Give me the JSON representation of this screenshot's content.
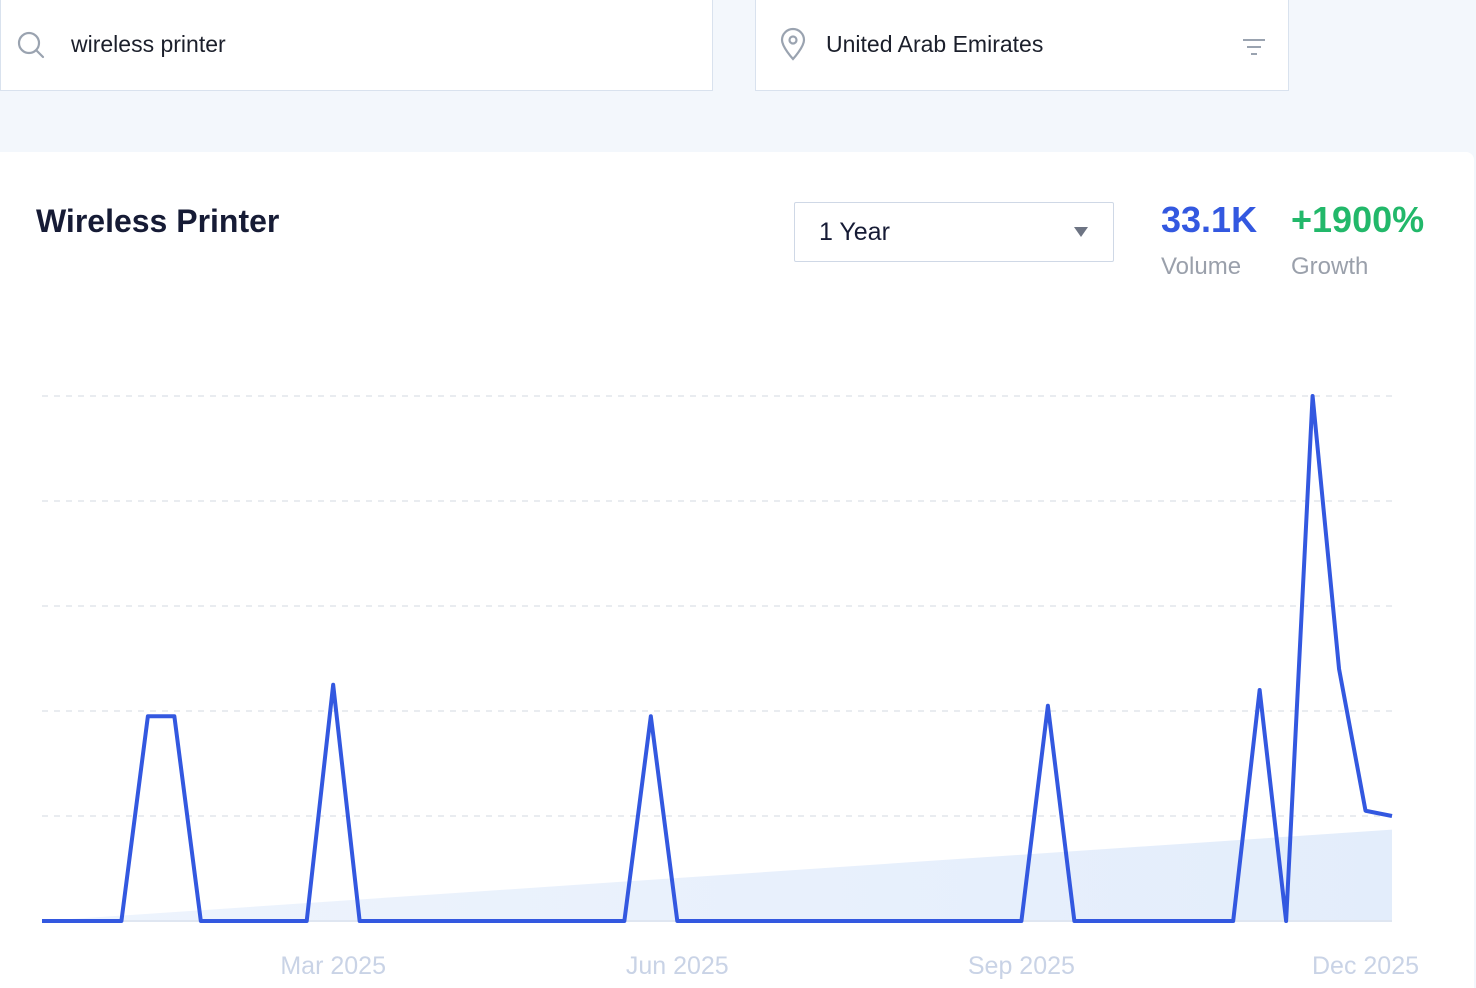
{
  "search": {
    "query": "wireless printer",
    "location": "United Arab Emirates"
  },
  "panel": {
    "title": "Wireless Printer",
    "period": "1 Year",
    "volume": "33.1K",
    "volume_label": "Volume",
    "growth": "+1900%",
    "growth_label": "Growth"
  },
  "chart_data": {
    "type": "line",
    "categories": [
      null,
      null,
      null,
      null,
      null,
      null,
      null,
      null,
      null,
      null,
      null,
      "Mar 2025",
      null,
      null,
      null,
      null,
      null,
      null,
      null,
      null,
      null,
      null,
      null,
      null,
      "Jun 2025",
      null,
      null,
      null,
      null,
      null,
      null,
      null,
      null,
      null,
      null,
      null,
      null,
      "Sep 2025",
      null,
      null,
      null,
      null,
      null,
      null,
      null,
      null,
      null,
      null,
      null,
      null,
      "Dec 2025",
      null
    ],
    "values": [
      0,
      0,
      0,
      0,
      1.95,
      1.95,
      0,
      0,
      0,
      0,
      0,
      2.25,
      0,
      0,
      0,
      0,
      0,
      0,
      0,
      0,
      0,
      0,
      0,
      1.95,
      0,
      0,
      0,
      0,
      0,
      0,
      0,
      0,
      0,
      0,
      0,
      0,
      0,
      0,
      2.05,
      0,
      0,
      0,
      0,
      0,
      0,
      0,
      2.2,
      0,
      5,
      2.4,
      1.05,
      1
    ],
    "trend_values": [
      0,
      0.87
    ],
    "color": "#3358e0",
    "ylim": [
      0,
      5
    ],
    "yticks": [
      0,
      1,
      2,
      3,
      4,
      5
    ],
    "grid": true
  }
}
